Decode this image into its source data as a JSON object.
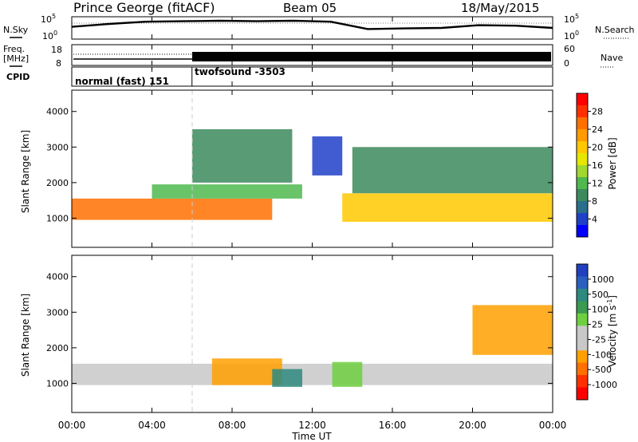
{
  "header": {
    "station": "Prince George (fitACF)",
    "beam": "Beam 05",
    "date": "18/May/2015"
  },
  "left_labels": {
    "nsky": "N.Sky",
    "freq_line1": "Freq.",
    "freq_line2": "[MHz]",
    "cpid": "CPID"
  },
  "right_labels": {
    "nsearch": "N.Search",
    "nave": "Nave"
  },
  "nsky_ticks": [
    "10^5",
    "10^0"
  ],
  "nsearch_ticks": [
    "10^5",
    "10^0"
  ],
  "freq_ticks": [
    "18",
    "8"
  ],
  "nave_ticks": [
    "60",
    "0"
  ],
  "cpid_segments": [
    {
      "label": "normal (fast) 151",
      "start_hour": 0,
      "end_hour": 6
    },
    {
      "label": "twofsound -3503",
      "start_hour": 6,
      "end_hour": 24
    }
  ],
  "power_colorbar": {
    "label": "Power [dB]",
    "ticks": [
      "28",
      "24",
      "20",
      "16",
      "12",
      "8",
      "4"
    ],
    "colors": [
      "#ff0000",
      "#ff3000",
      "#ff7000",
      "#ff9a00",
      "#ffc800",
      "#e6e600",
      "#a0d830",
      "#4fb84f",
      "#3c8a5c",
      "#2a6e8c",
      "#2040c8",
      "#0000ff"
    ]
  },
  "velocity_colorbar": {
    "label": "Velocity [m s^-1]",
    "ticks": [
      "1000",
      "500",
      "100",
      "25",
      "-25",
      "-100",
      "-500",
      "-1000"
    ],
    "colors": [
      "#2040c0",
      "#2a5fc0",
      "#2e8a80",
      "#3a9a50",
      "#6ed040",
      "#c8c8c8",
      "#c8c8c8",
      "#ffa000",
      "#ff7000",
      "#ff3000",
      "#ff0000"
    ]
  },
  "chart_data": [
    {
      "type": "line",
      "title": "N.Sky / N.Search",
      "x": [
        "00:00",
        "02:00",
        "04:00",
        "06:00",
        "08:00",
        "10:00",
        "12:00",
        "13:00",
        "14:00",
        "16:00",
        "18:00",
        "20:00",
        "22:00",
        "24:00"
      ],
      "series": [
        {
          "name": "N.Sky",
          "values": [
            0.55,
            0.68,
            0.78,
            0.8,
            0.82,
            0.8,
            0.82,
            0.78,
            0.45,
            0.48,
            0.5,
            0.62,
            0.6,
            0.5
          ]
        }
      ]
    },
    {
      "type": "line",
      "title": "Freq. / Nave",
      "x": [
        "00:00",
        "06:00",
        "06:00",
        "24:00"
      ],
      "series": [
        {
          "name": "Freq.",
          "values": [
            11,
            11,
            11,
            11
          ]
        },
        {
          "name": "Nave",
          "values": [
            25,
            25,
            38,
            38
          ]
        }
      ]
    },
    {
      "type": "heatmap",
      "title": "Power",
      "xlabel": "Time UT",
      "ylabel": "Slant Range [km]",
      "x_ticks": [
        "00:00",
        "04:00",
        "08:00",
        "12:00",
        "16:00",
        "20:00",
        "00:00"
      ],
      "y_ticks": [
        "1000",
        "2000",
        "3000",
        "4000"
      ],
      "xlim_hours": [
        0,
        24
      ],
      "ylim_km": [
        180,
        4600
      ],
      "value_units": "dB",
      "regions": [
        {
          "start_hour": 0,
          "end_hour": 10,
          "range_min_km": 950,
          "range_max_km": 1550,
          "value_db": 26
        },
        {
          "start_hour": 4,
          "end_hour": 11.5,
          "range_min_km": 1550,
          "range_max_km": 1950,
          "value_db": 14
        },
        {
          "start_hour": 6,
          "end_hour": 11,
          "range_min_km": 2000,
          "range_max_km": 3500,
          "value_db": 10
        },
        {
          "start_hour": 12,
          "end_hour": 13.5,
          "range_min_km": 2200,
          "range_max_km": 3300,
          "value_db": 6
        },
        {
          "start_hour": 13.5,
          "end_hour": 24,
          "range_min_km": 900,
          "range_max_km": 1700,
          "value_db": 22
        },
        {
          "start_hour": 14,
          "end_hour": 24,
          "range_min_km": 1700,
          "range_max_km": 3000,
          "value_db": 10
        }
      ]
    },
    {
      "type": "heatmap",
      "title": "Velocity",
      "xlabel": "Time UT",
      "ylabel": "Slant Range [km]",
      "x_ticks": [
        "00:00",
        "04:00",
        "08:00",
        "12:00",
        "16:00",
        "20:00",
        "00:00"
      ],
      "y_ticks": [
        "1000",
        "2000",
        "3000",
        "4000"
      ],
      "xlim_hours": [
        0,
        24
      ],
      "ylim_km": [
        180,
        4600
      ],
      "value_units": "m s^-1",
      "regions": [
        {
          "start_hour": 0,
          "end_hour": 24,
          "range_min_km": 950,
          "range_max_km": 1550,
          "value_ms": 0
        },
        {
          "start_hour": 7,
          "end_hour": 10.5,
          "range_min_km": 950,
          "range_max_km": 1700,
          "value_ms": -300
        },
        {
          "start_hour": 10,
          "end_hour": 11.5,
          "range_min_km": 900,
          "range_max_km": 1400,
          "value_ms": 600
        },
        {
          "start_hour": 13,
          "end_hour": 14.5,
          "range_min_km": 900,
          "range_max_km": 1600,
          "value_ms": 200
        },
        {
          "start_hour": 20,
          "end_hour": 24,
          "range_min_km": 1800,
          "range_max_km": 3200,
          "value_ms": -300
        }
      ]
    }
  ]
}
